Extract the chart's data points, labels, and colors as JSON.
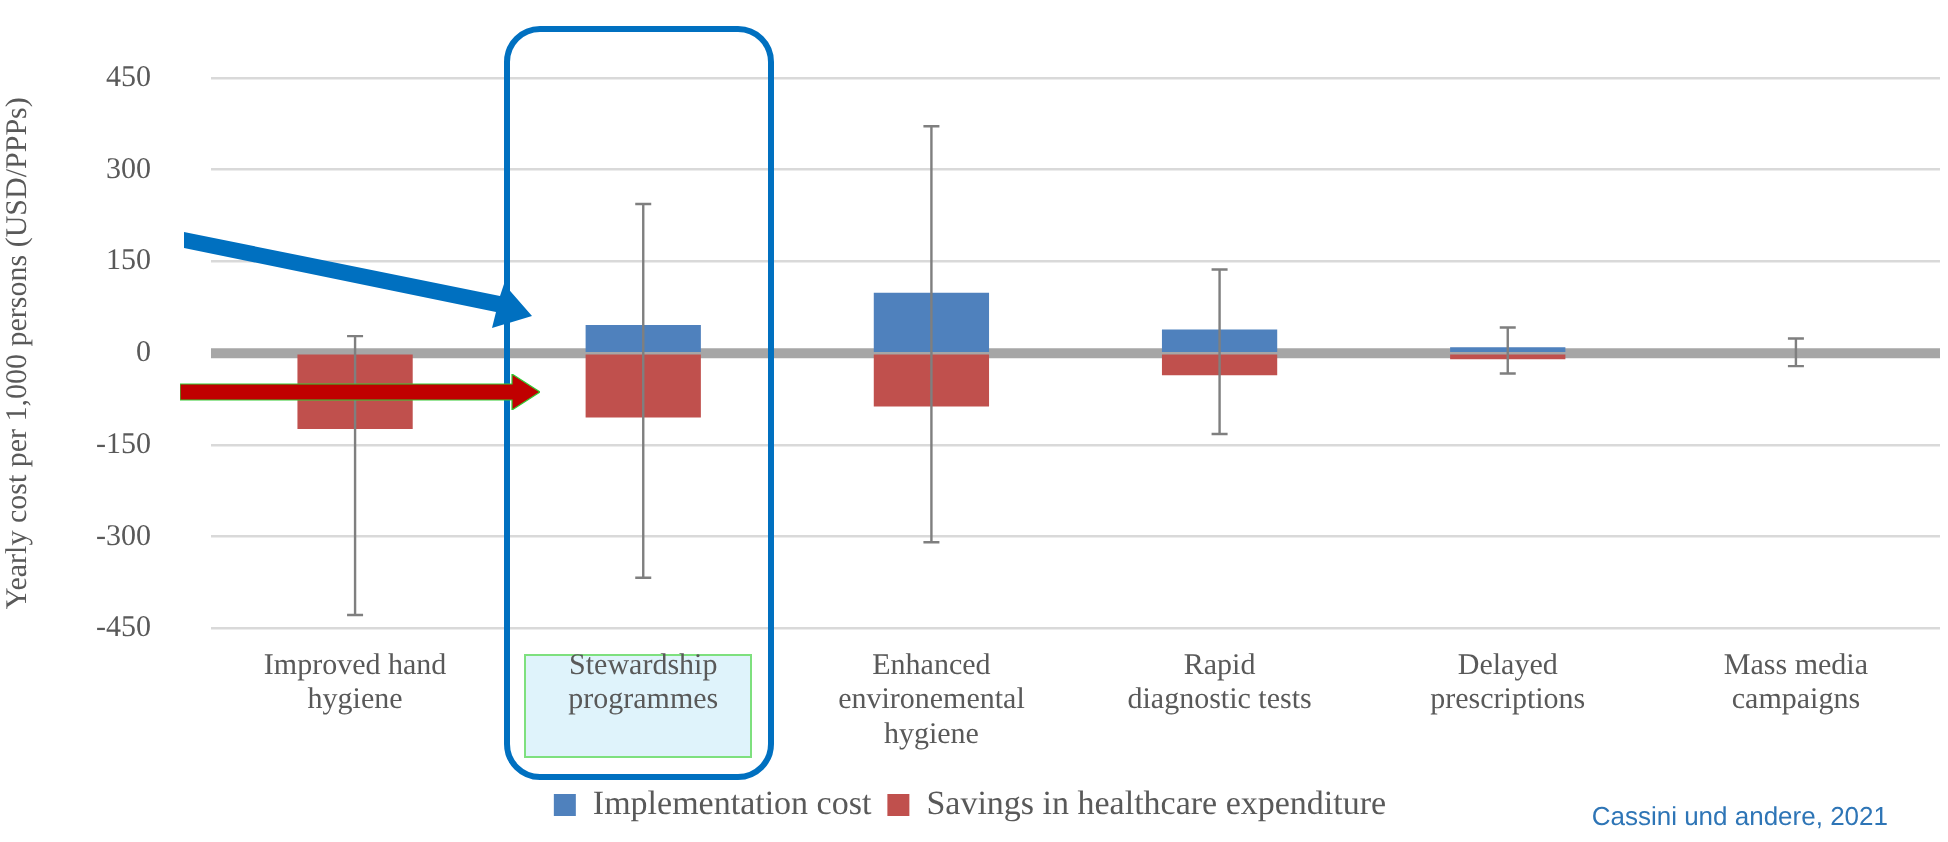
{
  "chart_data": {
    "type": "bar",
    "ylabel": "Yearly cost per 1,000 persons (USD/PPPs)",
    "categories": [
      "Improved hand hygiene",
      "Stewardship programmes",
      "Enhanced environemental hygiene",
      "Rapid diagnostic tests",
      "Delayed prescriptions",
      "Mass media campaigns"
    ],
    "series": [
      {
        "name": "Implementation cost",
        "color": "#4f81bd",
        "values": [
          0,
          46,
          99,
          39,
          10,
          0
        ],
        "errors": [
          [
            -428,
            28
          ],
          [
            -367,
            244
          ],
          [
            -309,
            371
          ],
          [
            -132,
            137
          ],
          [
            -33,
            42
          ],
          [
            -21,
            24
          ]
        ]
      },
      {
        "name": "Savings in healthcare expenditure",
        "color": "#c0504d",
        "values": [
          -124,
          -105,
          -87,
          -36,
          -10,
          0
        ]
      }
    ],
    "stacked": true,
    "ylim": [
      -450,
      450
    ],
    "yticks": [
      -450,
      -300,
      -150,
      0,
      150,
      300,
      450
    ],
    "grid": "y",
    "legend": "bottom",
    "annotations": [
      "Cassini und andere, 2021"
    ]
  }
}
